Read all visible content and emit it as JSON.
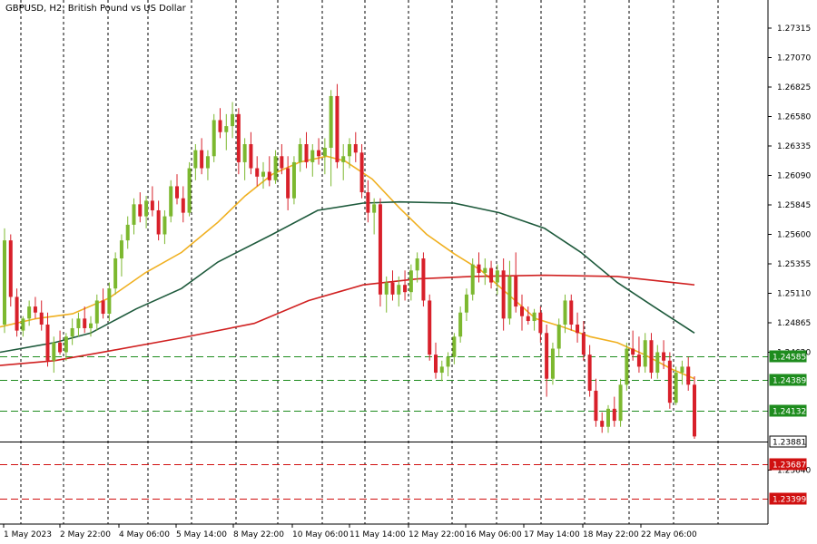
{
  "chart_data": {
    "type": "candlestick",
    "title": "GBPUSD, H2:  British Pound vs US Dollar",
    "ylim": [
      1.2315,
      1.275
    ],
    "y_ticks": [
      "1.27315",
      "1.27070",
      "1.26825",
      "1.26580",
      "1.26335",
      "1.26090",
      "1.25845",
      "1.25600",
      "1.25355",
      "1.25110",
      "1.24865",
      "1.24620",
      "1.23640"
    ],
    "x_ticks": [
      "1 May 2023",
      "2 May 22:00",
      "4 May 06:00",
      "5 May 14:00",
      "8 May 22:00",
      "10 May 06:00",
      "11 May 14:00",
      "12 May 22:00",
      "16 May 06:00",
      "17 May 14:00",
      "18 May 22:00",
      "22 May 06:00"
    ],
    "price_levels": [
      {
        "label": "1.24585",
        "value": 1.24585,
        "color": "#1e8c1e",
        "style": "dashed"
      },
      {
        "label": "1.24389",
        "value": 1.24389,
        "color": "#1e8c1e",
        "style": "dashed"
      },
      {
        "label": "1.24132",
        "value": 1.24132,
        "color": "#1e8c1e",
        "style": "dashed"
      },
      {
        "label": "1.23881",
        "value": 1.23881,
        "color": "#000000",
        "style": "solid"
      },
      {
        "label": "1.23687",
        "value": 1.23687,
        "color": "#d01010",
        "style": "dashed"
      },
      {
        "label": "1.23399",
        "value": 1.23399,
        "color": "#d01010",
        "style": "dashed"
      }
    ],
    "moving_averages": [
      {
        "color": "#f0b020",
        "values": [
          [
            0,
            1.2483
          ],
          [
            40,
            1.249
          ],
          [
            80,
            1.2494
          ],
          [
            120,
            1.2507
          ],
          [
            160,
            1.2528
          ],
          [
            200,
            1.2545
          ],
          [
            240,
            1.257
          ],
          [
            270,
            1.2592
          ],
          [
            300,
            1.261
          ],
          [
            330,
            1.262
          ],
          [
            360,
            1.2625
          ],
          [
            380,
            1.2621
          ],
          [
            410,
            1.2606
          ],
          [
            440,
            1.2582
          ],
          [
            470,
            1.256
          ],
          [
            500,
            1.2544
          ],
          [
            530,
            1.253
          ],
          [
            560,
            1.251
          ],
          [
            590,
            1.249
          ],
          [
            620,
            1.2483
          ],
          [
            650,
            1.2475
          ],
          [
            680,
            1.247
          ],
          [
            710,
            1.246
          ],
          [
            740,
            1.2448
          ],
          [
            765,
            1.244
          ]
        ]
      },
      {
        "color": "#1e5a3c",
        "values": [
          [
            0,
            1.2462
          ],
          [
            60,
            1.247
          ],
          [
            100,
            1.2478
          ],
          [
            150,
            1.2498
          ],
          [
            200,
            1.2515
          ],
          [
            240,
            1.2537
          ],
          [
            300,
            1.256
          ],
          [
            350,
            1.258
          ],
          [
            400,
            1.2586
          ],
          [
            440,
            1.2587
          ],
          [
            500,
            1.2586
          ],
          [
            550,
            1.2578
          ],
          [
            600,
            1.2565
          ],
          [
            640,
            1.2545
          ],
          [
            680,
            1.252
          ],
          [
            720,
            1.25
          ],
          [
            765,
            1.2478
          ]
        ]
      },
      {
        "color": "#d02020",
        "values": [
          [
            0,
            1.2451
          ],
          [
            60,
            1.2455
          ],
          [
            120,
            1.2463
          ],
          [
            200,
            1.2474
          ],
          [
            280,
            1.2486
          ],
          [
            340,
            1.2505
          ],
          [
            400,
            1.2518
          ],
          [
            460,
            1.2523
          ],
          [
            520,
            1.2525
          ],
          [
            600,
            1.2526
          ],
          [
            680,
            1.2525
          ],
          [
            765,
            1.2518
          ]
        ]
      }
    ],
    "candles": [
      [
        1.2485,
        1.2565,
        1.2478,
        1.2555
      ],
      [
        1.2555,
        1.256,
        1.25,
        1.2508
      ],
      [
        1.2508,
        1.2515,
        1.2475,
        1.248
      ],
      [
        1.248,
        1.2492,
        1.2475,
        1.249
      ],
      [
        1.249,
        1.2505,
        1.2484,
        1.25
      ],
      [
        1.25,
        1.2508,
        1.249,
        1.2495
      ],
      [
        1.2495,
        1.2505,
        1.248,
        1.2485
      ],
      [
        1.2485,
        1.2495,
        1.245,
        1.2455
      ],
      [
        1.2455,
        1.2475,
        1.2445,
        1.247
      ],
      [
        1.247,
        1.248,
        1.246,
        1.2462
      ],
      [
        1.2462,
        1.2478,
        1.2455,
        1.2475
      ],
      [
        1.2475,
        1.249,
        1.2468,
        1.2482
      ],
      [
        1.2482,
        1.2495,
        1.2475,
        1.249
      ],
      [
        1.249,
        1.25,
        1.2478,
        1.2482
      ],
      [
        1.2482,
        1.2492,
        1.2475,
        1.2486
      ],
      [
        1.2486,
        1.251,
        1.248,
        1.2505
      ],
      [
        1.2505,
        1.2515,
        1.249,
        1.2494
      ],
      [
        1.2494,
        1.252,
        1.2488,
        1.2515
      ],
      [
        1.2515,
        1.2545,
        1.251,
        1.254
      ],
      [
        1.254,
        1.256,
        1.2525,
        1.2555
      ],
      [
        1.2555,
        1.2575,
        1.2548,
        1.2568
      ],
      [
        1.2568,
        1.259,
        1.256,
        1.2585
      ],
      [
        1.2585,
        1.2595,
        1.257,
        1.2575
      ],
      [
        1.2575,
        1.2592,
        1.2565,
        1.2588
      ],
      [
        1.2588,
        1.26,
        1.2575,
        1.258
      ],
      [
        1.258,
        1.2588,
        1.2555,
        1.256
      ],
      [
        1.256,
        1.258,
        1.2552,
        1.2575
      ],
      [
        1.2575,
        1.2605,
        1.257,
        1.26
      ],
      [
        1.26,
        1.261,
        1.2585,
        1.259
      ],
      [
        1.259,
        1.26,
        1.257,
        1.2578
      ],
      [
        1.2578,
        1.262,
        1.2575,
        1.2615
      ],
      [
        1.2615,
        1.2635,
        1.2605,
        1.263
      ],
      [
        1.263,
        1.264,
        1.261,
        1.2615
      ],
      [
        1.2615,
        1.263,
        1.2605,
        1.2625
      ],
      [
        1.2625,
        1.266,
        1.262,
        1.2655
      ],
      [
        1.2655,
        1.2665,
        1.264,
        1.2645
      ],
      [
        1.2645,
        1.266,
        1.263,
        1.265
      ],
      [
        1.265,
        1.267,
        1.264,
        1.266
      ],
      [
        1.266,
        1.2665,
        1.261,
        1.262
      ],
      [
        1.262,
        1.264,
        1.2605,
        1.2635
      ],
      [
        1.2635,
        1.2645,
        1.261,
        1.2615
      ],
      [
        1.2615,
        1.2625,
        1.26,
        1.2608
      ],
      [
        1.2608,
        1.262,
        1.2598,
        1.2612
      ],
      [
        1.2612,
        1.2625,
        1.26,
        1.2605
      ],
      [
        1.2605,
        1.263,
        1.2602,
        1.2625
      ],
      [
        1.2625,
        1.2635,
        1.261,
        1.2615
      ],
      [
        1.2615,
        1.2625,
        1.258,
        1.259
      ],
      [
        1.259,
        1.2625,
        1.2585,
        1.262
      ],
      [
        1.262,
        1.264,
        1.2612,
        1.2635
      ],
      [
        1.2635,
        1.2645,
        1.2615,
        1.262
      ],
      [
        1.262,
        1.2635,
        1.2608,
        1.263
      ],
      [
        1.263,
        1.264,
        1.2618,
        1.2625
      ],
      [
        1.2625,
        1.264,
        1.261,
        1.2632
      ],
      [
        1.2632,
        1.268,
        1.26,
        1.2675
      ],
      [
        1.2675,
        1.2685,
        1.2615,
        1.262
      ],
      [
        1.262,
        1.2635,
        1.2605,
        1.2625
      ],
      [
        1.2625,
        1.264,
        1.2615,
        1.2635
      ],
      [
        1.2635,
        1.2645,
        1.262,
        1.2628
      ],
      [
        1.2628,
        1.2635,
        1.259,
        1.2595
      ],
      [
        1.2595,
        1.2605,
        1.257,
        1.2578
      ],
      [
        1.2578,
        1.259,
        1.256,
        1.2585
      ],
      [
        1.2585,
        1.259,
        1.25,
        1.251
      ],
      [
        1.251,
        1.2525,
        1.2495,
        1.252
      ],
      [
        1.252,
        1.253,
        1.2505,
        1.251
      ],
      [
        1.251,
        1.2525,
        1.25,
        1.2518
      ],
      [
        1.2518,
        1.253,
        1.2505,
        1.2512
      ],
      [
        1.2512,
        1.2535,
        1.2505,
        1.253
      ],
      [
        1.253,
        1.2545,
        1.252,
        1.254
      ],
      [
        1.254,
        1.2545,
        1.25,
        1.2505
      ],
      [
        1.2505,
        1.251,
        1.2455,
        1.246
      ],
      [
        1.246,
        1.247,
        1.244,
        1.2445
      ],
      [
        1.2445,
        1.2455,
        1.2438,
        1.245
      ],
      [
        1.245,
        1.2462,
        1.2442,
        1.2458
      ],
      [
        1.2458,
        1.2478,
        1.2452,
        1.2475
      ],
      [
        1.2475,
        1.25,
        1.247,
        1.2495
      ],
      [
        1.2495,
        1.2515,
        1.2488,
        1.251
      ],
      [
        1.251,
        1.254,
        1.2505,
        1.2535
      ],
      [
        1.2535,
        1.2545,
        1.252,
        1.2528
      ],
      [
        1.2528,
        1.254,
        1.2518,
        1.2532
      ],
      [
        1.2532,
        1.2538,
        1.2515,
        1.252
      ],
      [
        1.252,
        1.2535,
        1.251,
        1.253
      ],
      [
        1.253,
        1.254,
        1.248,
        1.249
      ],
      [
        1.249,
        1.2538,
        1.2485,
        1.2525
      ],
      [
        1.2525,
        1.2545,
        1.2495,
        1.25
      ],
      [
        1.25,
        1.251,
        1.248,
        1.2492
      ],
      [
        1.2492,
        1.25,
        1.2485,
        1.2488
      ],
      [
        1.2488,
        1.2498,
        1.248,
        1.2495
      ],
      [
        1.2495,
        1.25,
        1.247,
        1.2478
      ],
      [
        1.2478,
        1.2485,
        1.2425,
        1.244
      ],
      [
        1.244,
        1.247,
        1.2435,
        1.2465
      ],
      [
        1.2465,
        1.249,
        1.2458,
        1.2485
      ],
      [
        1.2485,
        1.251,
        1.2478,
        1.2505
      ],
      [
        1.2505,
        1.251,
        1.248,
        1.2485
      ],
      [
        1.2485,
        1.2495,
        1.247,
        1.2478
      ],
      [
        1.2478,
        1.2488,
        1.2455,
        1.246
      ],
      [
        1.246,
        1.2468,
        1.2425,
        1.243
      ],
      [
        1.243,
        1.244,
        1.24,
        1.2405
      ],
      [
        1.2405,
        1.2412,
        1.2395,
        1.24
      ],
      [
        1.24,
        1.2418,
        1.2395,
        1.2415
      ],
      [
        1.2415,
        1.2425,
        1.24,
        1.2405
      ],
      [
        1.2405,
        1.244,
        1.24,
        1.2435
      ],
      [
        1.2435,
        1.247,
        1.243,
        1.2465
      ],
      [
        1.2465,
        1.248,
        1.2455,
        1.246
      ],
      [
        1.246,
        1.2475,
        1.2445,
        1.245
      ],
      [
        1.245,
        1.2478,
        1.2445,
        1.2472
      ],
      [
        1.2472,
        1.2478,
        1.244,
        1.2445
      ],
      [
        1.2445,
        1.2468,
        1.244,
        1.2462
      ],
      [
        1.2462,
        1.2472,
        1.2448,
        1.2455
      ],
      [
        1.2455,
        1.2462,
        1.2415,
        1.242
      ],
      [
        1.242,
        1.245,
        1.2418,
        1.2445
      ],
      [
        1.2445,
        1.2455,
        1.2435,
        1.245
      ],
      [
        1.245,
        1.2458,
        1.243,
        1.2435
      ],
      [
        1.2435,
        1.2442,
        1.239,
        1.2392
      ]
    ]
  }
}
